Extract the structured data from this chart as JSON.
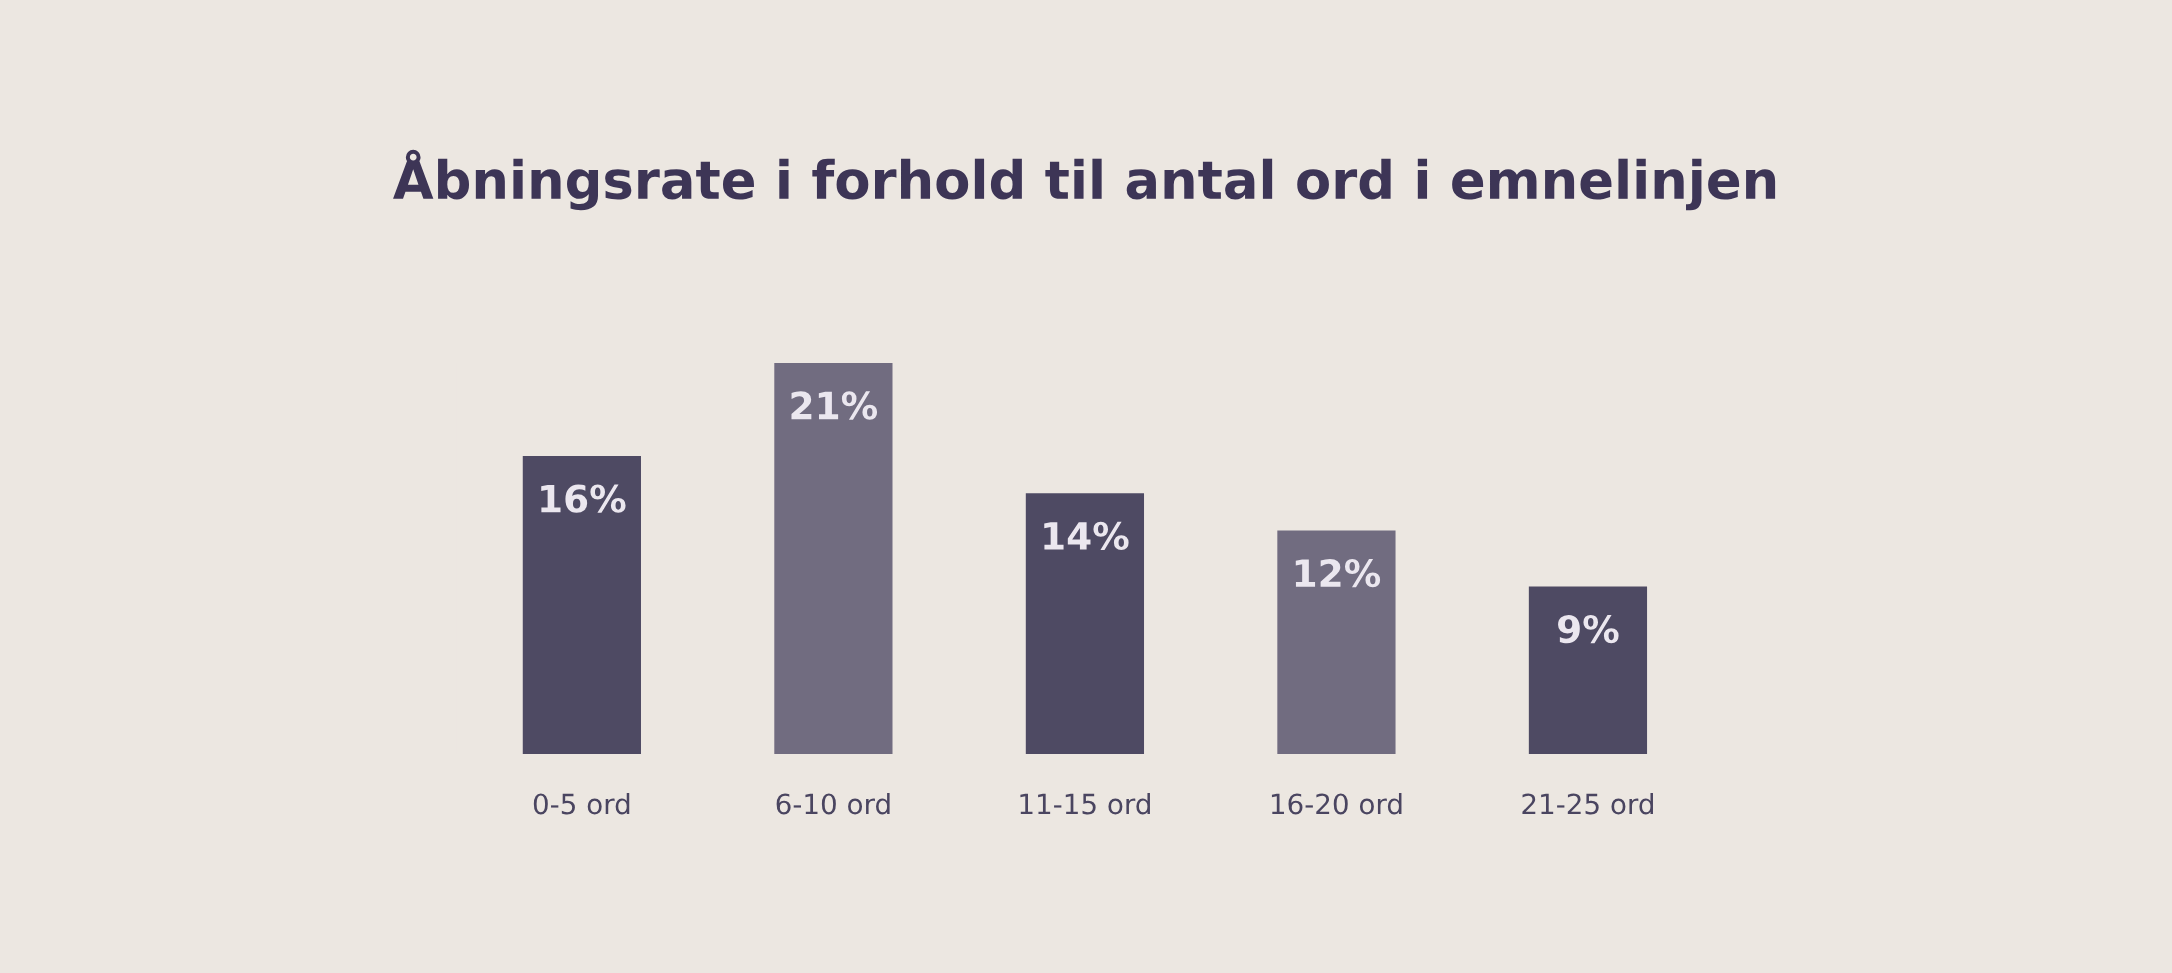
{
  "chart_data": {
    "type": "bar",
    "title": "Åbningsrate i forhold til antal ord i emnelinjen",
    "categories": [
      "0-5 ord",
      "6-10 ord",
      "11-15 ord",
      "16-20 ord",
      "21-25 ord"
    ],
    "values": [
      16,
      21,
      14,
      12,
      9
    ],
    "colors": [
      "#4e4a63",
      "#716c80",
      "#4e4a63",
      "#716c80",
      "#4e4a63"
    ],
    "value_labels": [
      "16%",
      "21%",
      "14%",
      "12%",
      "9%"
    ],
    "grid": false
  }
}
